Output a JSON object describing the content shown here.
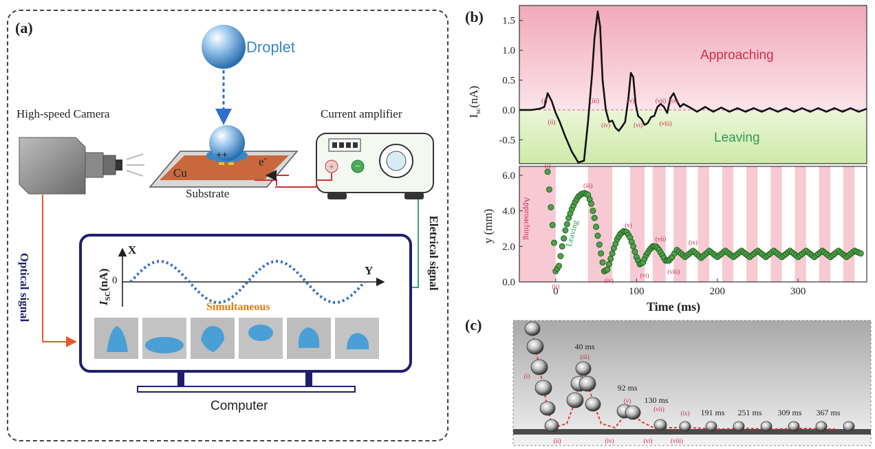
{
  "panel_a": {
    "label": "(a)",
    "droplet": "Droplet",
    "camera": "High-speed Camera",
    "amplifier": "Current amplifier",
    "cu": "Cu",
    "charges": "++",
    "electron": "e",
    "electron_sup": "-",
    "substrate": "Substrate",
    "optical": "Optical signal",
    "electrical": "Eletrical signal",
    "monitor": {
      "xaxis_letter": "X",
      "yaxis_letter": "Y",
      "ylabel_main": "I",
      "ylabel_sub": "SC",
      "ylabel_unit": "(nA)",
      "zero": "0",
      "simultaneous": "Simultaneous"
    },
    "computer": "Computer",
    "colors": {
      "droplet": "#3a87c8",
      "optical": "#e8582a",
      "electrical": "#3aa070",
      "monitor": "#1f1e6e",
      "simultaneous": "#e07a10",
      "wave": "#2f6fd0"
    }
  },
  "panel_b": {
    "label": "(b)",
    "top": {
      "ylabel_main": "I",
      "ylabel_sub": "sc",
      "ylabel_unit": "(nA)",
      "yticks": [
        "1.5",
        "1.0",
        "0.5",
        "0.0",
        "-0.5"
      ],
      "approaching": "Approaching",
      "leaving": "Leaving",
      "markers": [
        "(i)",
        "(ii)",
        "(iii)",
        "(iv)",
        "(v)",
        "(vi)",
        "(vii)",
        "(viii)",
        "(ix)"
      ]
    },
    "bottom": {
      "ylabel": "y (mm)",
      "yticks": [
        "6.0",
        "4.0",
        "2.0",
        "0.0"
      ],
      "xticks": [
        "0",
        "100",
        "200",
        "300"
      ],
      "xlabel": "Time (ms)",
      "approaching": "Approaching",
      "leaving": "Leaving",
      "markers": [
        "(i)",
        "(ii)",
        "(iii)",
        "(iv)",
        "(v)",
        "(vi)",
        "(vii)",
        "(viii)",
        "(ix)"
      ]
    }
  },
  "panel_c": {
    "label": "(c)",
    "times": [
      "40 ms",
      "92 ms",
      "130 ms",
      "191 ms",
      "251 ms",
      "309 ms",
      "367 ms"
    ],
    "markers": [
      "(i)",
      "(ii)",
      "(iii)",
      "(iv)",
      "(v)",
      "(vi)",
      "(vii)",
      "(viii)",
      "(ix)"
    ]
  },
  "chart_data": [
    {
      "type": "line",
      "xlabel": "",
      "ylabel": "Isc (nA)",
      "ylim": [
        -0.9,
        1.75
      ],
      "xlim": [
        -45,
        385
      ],
      "grid": false,
      "x": [
        -45,
        -30,
        -20,
        -14,
        -10,
        -5,
        0,
        5,
        12,
        20,
        28,
        35,
        40,
        45,
        48,
        52,
        55,
        58,
        62,
        66,
        70,
        74,
        78,
        82,
        86,
        90,
        93,
        96,
        99,
        102,
        106,
        110,
        114,
        118,
        122,
        126,
        130,
        134,
        138,
        142,
        146,
        150,
        154,
        158,
        165,
        175,
        185,
        195,
        205,
        215,
        225,
        235,
        245,
        255,
        265,
        275,
        285,
        295,
        305,
        315,
        325,
        335,
        345,
        355,
        365,
        375,
        385
      ],
      "values": [
        0.0,
        0.0,
        0.02,
        0.05,
        0.28,
        0.15,
        -0.05,
        -0.2,
        -0.45,
        -0.7,
        -0.88,
        -0.85,
        -0.2,
        0.6,
        1.2,
        1.65,
        1.4,
        0.5,
        0.0,
        -0.2,
        -0.18,
        -0.3,
        -0.35,
        -0.28,
        -0.2,
        0.2,
        0.62,
        0.55,
        0.1,
        -0.1,
        -0.15,
        -0.25,
        -0.22,
        -0.12,
        -0.1,
        0.05,
        0.1,
        0.05,
        -0.05,
        0.2,
        0.28,
        0.15,
        0.05,
        0.1,
        0.05,
        -0.03,
        0.05,
        -0.03,
        0.04,
        -0.03,
        0.03,
        -0.03,
        0.03,
        -0.03,
        0.03,
        -0.03,
        0.03,
        -0.03,
        0.03,
        -0.03,
        0.03,
        -0.03,
        0.03,
        -0.03,
        0.03,
        -0.03,
        0.02
      ]
    },
    {
      "type": "scatter",
      "xlabel": "Time (ms)",
      "ylabel": "y (mm)",
      "xlim": [
        -45,
        385
      ],
      "ylim": [
        0,
        6.5
      ],
      "x": [
        -10,
        -8,
        -6,
        -4,
        -2,
        0,
        4,
        8,
        12,
        16,
        20,
        24,
        28,
        32,
        36,
        40,
        44,
        48,
        52,
        56,
        60,
        64,
        68,
        72,
        76,
        80,
        84,
        88,
        92,
        96,
        100,
        104,
        108,
        112,
        116,
        120,
        124,
        128,
        132,
        136,
        140,
        144,
        150,
        160,
        170,
        180,
        190,
        200,
        210,
        220,
        230,
        240,
        250,
        260,
        270,
        280,
        290,
        300,
        310,
        320,
        330,
        340,
        350,
        360,
        370,
        380
      ],
      "values": [
        6.2,
        5.2,
        4.2,
        3.2,
        2.2,
        0.6,
        0.9,
        2.0,
        2.9,
        3.6,
        4.1,
        4.5,
        4.8,
        4.95,
        5.0,
        4.9,
        4.4,
        3.6,
        2.6,
        1.6,
        0.6,
        0.7,
        1.3,
        1.9,
        2.4,
        2.7,
        2.85,
        2.8,
        2.5,
        2.0,
        1.4,
        1.0,
        1.1,
        1.5,
        1.8,
        2.0,
        2.0,
        1.8,
        1.5,
        1.2,
        1.2,
        1.4,
        1.8,
        1.4,
        1.75,
        1.35,
        1.75,
        1.4,
        1.75,
        1.4,
        1.75,
        1.4,
        1.75,
        1.4,
        1.75,
        1.4,
        1.75,
        1.4,
        1.75,
        1.4,
        1.75,
        1.4,
        1.75,
        1.4,
        1.75,
        1.55
      ]
    }
  ]
}
